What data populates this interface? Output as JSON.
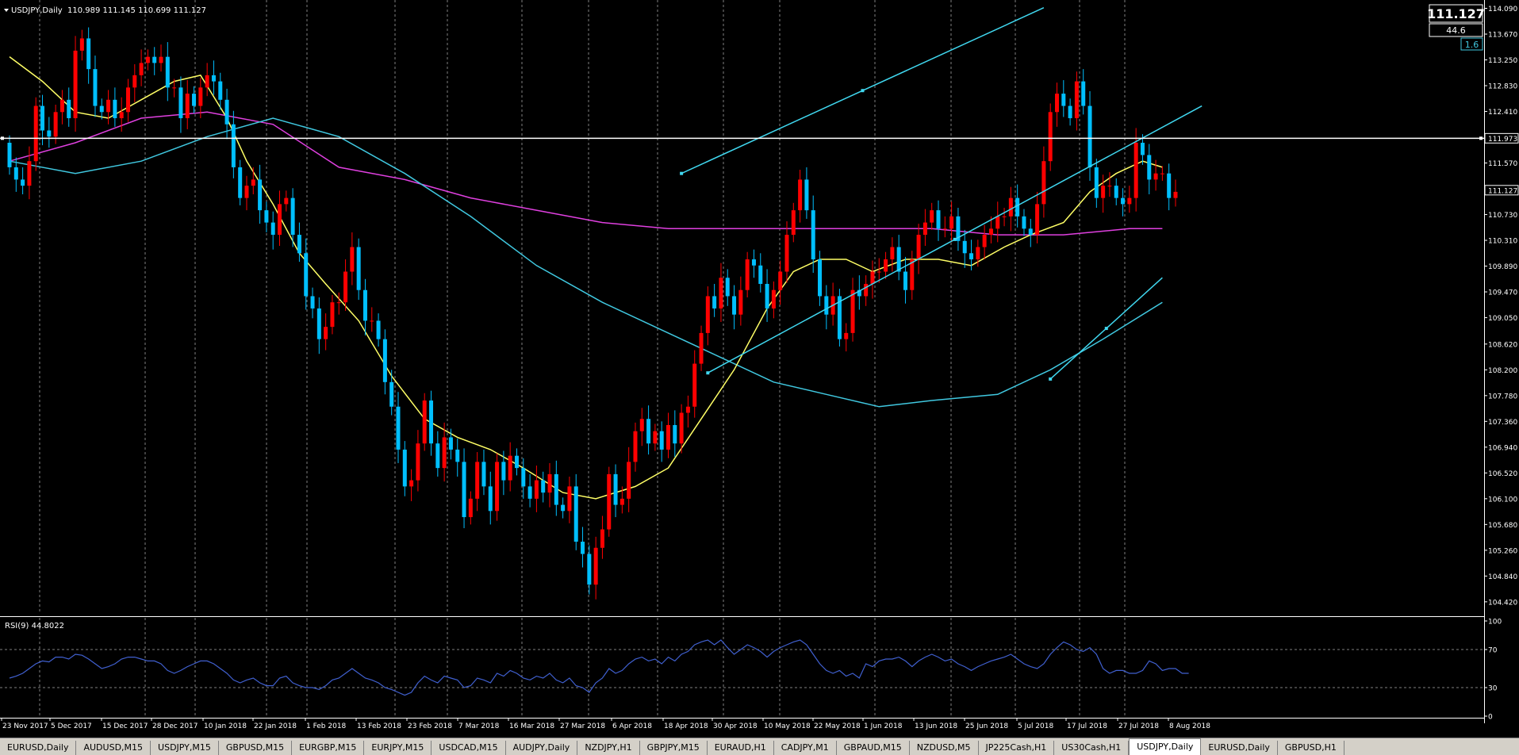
{
  "header": {
    "symbol_tf": "USDJPY,Daily",
    "ohlc": "110.989 111.145 110.699 111.127",
    "price_box": "111.127",
    "spread_box": "44.6",
    "small_box": "1.6"
  },
  "rsi": {
    "label": "RSI(9) 44.8022",
    "levels": [
      "100",
      "70",
      "30",
      "0"
    ]
  },
  "colors": {
    "bull": "#ff0000",
    "bear": "#00bfff",
    "ma_fast": "#ffff66",
    "ma_mid": "#40c8e0",
    "ma_slow": "#e040e0",
    "channel": "#40d8f0",
    "hline": "#ffffff",
    "rsi": "#4060d0",
    "grid": "#808080"
  },
  "chart_data": {
    "type": "candlestick",
    "symbol": "USDJPY",
    "timeframe": "Daily",
    "ylim": [
      104.25,
      114.2
    ],
    "price_ticks": [
      "114.090",
      "113.670",
      "113.250",
      "112.830",
      "112.410",
      "111.973",
      "111.570",
      "111.127",
      "110.730",
      "110.310",
      "109.890",
      "109.470",
      "109.050",
      "108.620",
      "108.200",
      "107.780",
      "107.360",
      "106.940",
      "106.520",
      "106.100",
      "105.680",
      "105.260",
      "104.840",
      "104.420"
    ],
    "date_ticks": [
      "23 Nov 2017",
      "5 Dec 2017",
      "15 Dec 2017",
      "28 Dec 2017",
      "10 Jan 2018",
      "22 Jan 2018",
      "1 Feb 2018",
      "13 Feb 2018",
      "23 Feb 2018",
      "7 Mar 2018",
      "16 Mar 2018",
      "27 Mar 2018",
      "6 Apr 2018",
      "18 Apr 2018",
      "30 Apr 2018",
      "10 May 2018",
      "22 May 2018",
      "1 Jun 2018",
      "13 Jun 2018",
      "25 Jun 2018",
      "5 Jul 2018",
      "17 Jul 2018",
      "27 Jul 2018",
      "8 Aug 2018"
    ],
    "hline_price": 111.973,
    "current_price": 111.127,
    "closes": [
      111.5,
      111.3,
      111.2,
      111.6,
      112.5,
      112.1,
      112.0,
      112.4,
      112.6,
      112.3,
      113.4,
      113.6,
      113.1,
      112.5,
      112.4,
      112.6,
      112.3,
      112.4,
      112.8,
      113.0,
      113.2,
      113.3,
      113.2,
      113.3,
      112.8,
      112.8,
      112.3,
      112.7,
      112.5,
      112.8,
      113.0,
      112.9,
      112.6,
      112.2,
      111.5,
      111.0,
      111.2,
      111.3,
      110.8,
      110.6,
      110.4,
      110.9,
      111.0,
      110.4,
      110.1,
      109.4,
      109.2,
      108.7,
      108.9,
      109.3,
      109.3,
      109.8,
      110.2,
      109.5,
      109.0,
      109.0,
      108.7,
      108.0,
      107.6,
      106.9,
      106.3,
      106.4,
      107.0,
      107.7,
      107.0,
      106.6,
      107.1,
      106.9,
      106.7,
      105.8,
      106.1,
      106.7,
      106.3,
      105.9,
      106.7,
      106.4,
      106.8,
      106.6,
      106.3,
      106.1,
      106.4,
      106.2,
      106.5,
      106.0,
      105.9,
      106.3,
      105.4,
      105.2,
      104.7,
      105.3,
      105.6,
      106.5,
      106.0,
      106.1,
      106.7,
      107.2,
      107.4,
      107.0,
      107.2,
      106.9,
      107.3,
      107.0,
      107.5,
      107.6,
      108.3,
      108.8,
      109.4,
      109.2,
      109.7,
      109.4,
      109.1,
      109.5,
      110.0,
      109.9,
      109.6,
      109.2,
      109.5,
      109.8,
      110.4,
      110.8,
      111.3,
      110.8,
      110.0,
      109.4,
      109.1,
      109.4,
      108.7,
      108.8,
      109.5,
      109.4,
      109.6,
      109.8,
      109.8,
      110.0,
      110.2,
      109.8,
      109.5,
      110.0,
      110.4,
      110.6,
      110.8,
      110.5,
      110.5,
      110.7,
      110.3,
      110.1,
      110.0,
      110.2,
      110.4,
      110.5,
      110.7,
      110.7,
      111.0,
      110.7,
      110.5,
      110.4,
      110.9,
      111.6,
      112.4,
      112.7,
      112.5,
      112.3,
      112.9,
      112.5,
      111.5,
      111.0,
      111.2,
      111.2,
      111.0,
      110.9,
      111.0,
      111.9,
      111.7,
      111.3,
      111.4,
      111.4,
      111.0,
      111.1
    ],
    "ma_fast": [
      [
        0,
        113.3
      ],
      [
        5,
        112.9
      ],
      [
        10,
        112.4
      ],
      [
        15,
        112.3
      ],
      [
        20,
        112.6
      ],
      [
        25,
        112.9
      ],
      [
        29,
        113.0
      ],
      [
        33,
        112.3
      ],
      [
        36,
        111.6
      ],
      [
        40,
        110.9
      ],
      [
        44,
        110.1
      ],
      [
        48,
        109.6
      ],
      [
        53,
        109.0
      ],
      [
        58,
        108.1
      ],
      [
        63,
        107.4
      ],
      [
        68,
        107.1
      ],
      [
        73,
        106.9
      ],
      [
        78,
        106.6
      ],
      [
        84,
        106.2
      ],
      [
        89,
        106.1
      ],
      [
        95,
        106.3
      ],
      [
        100,
        106.6
      ],
      [
        105,
        107.4
      ],
      [
        110,
        108.2
      ],
      [
        115,
        109.2
      ],
      [
        119,
        109.8
      ],
      [
        123,
        110.0
      ],
      [
        127,
        110.0
      ],
      [
        131,
        109.8
      ],
      [
        136,
        110.0
      ],
      [
        141,
        110.0
      ],
      [
        146,
        109.9
      ],
      [
        151,
        110.2
      ],
      [
        155,
        110.4
      ],
      [
        160,
        110.6
      ],
      [
        164,
        111.1
      ],
      [
        168,
        111.4
      ],
      [
        172,
        111.6
      ],
      [
        175,
        111.5
      ]
    ],
    "ma_mid": [
      [
        0,
        111.6
      ],
      [
        10,
        111.4
      ],
      [
        20,
        111.6
      ],
      [
        30,
        112.0
      ],
      [
        40,
        112.3
      ],
      [
        50,
        112.0
      ],
      [
        60,
        111.4
      ],
      [
        70,
        110.7
      ],
      [
        80,
        109.9
      ],
      [
        90,
        109.3
      ],
      [
        100,
        108.8
      ],
      [
        108,
        108.4
      ],
      [
        116,
        108.0
      ],
      [
        124,
        107.8
      ],
      [
        132,
        107.6
      ],
      [
        140,
        107.7
      ],
      [
        150,
        107.8
      ],
      [
        158,
        108.2
      ],
      [
        166,
        108.7
      ],
      [
        175,
        109.3
      ]
    ],
    "ma_slow": [
      [
        0,
        111.6
      ],
      [
        10,
        111.9
      ],
      [
        20,
        112.3
      ],
      [
        30,
        112.4
      ],
      [
        40,
        112.2
      ],
      [
        50,
        111.5
      ],
      [
        60,
        111.3
      ],
      [
        70,
        111.0
      ],
      [
        80,
        110.8
      ],
      [
        90,
        110.6
      ],
      [
        100,
        110.5
      ],
      [
        108,
        110.5
      ],
      [
        116,
        110.5
      ],
      [
        124,
        110.5
      ],
      [
        132,
        110.5
      ],
      [
        140,
        110.5
      ],
      [
        150,
        110.4
      ],
      [
        160,
        110.4
      ],
      [
        170,
        110.5
      ],
      [
        175,
        110.5
      ]
    ],
    "channel_lines": [
      {
        "from": [
          102,
          111.4
        ],
        "to": [
          157,
          114.1
        ]
      },
      {
        "from": [
          106,
          108.15
        ],
        "to": [
          181,
          112.5
        ]
      },
      {
        "from": [
          158,
          108.05
        ],
        "to": [
          175,
          109.7
        ]
      }
    ],
    "rsi_levels": [
      70,
      30
    ],
    "rsi_values": [
      40,
      42,
      45,
      50,
      55,
      58,
      57,
      62,
      62,
      60,
      65,
      64,
      60,
      55,
      50,
      52,
      55,
      60,
      62,
      62,
      60,
      58,
      58,
      55,
      48,
      45,
      48,
      52,
      55,
      58,
      58,
      55,
      50,
      45,
      38,
      35,
      38,
      40,
      35,
      32,
      32,
      40,
      42,
      35,
      32,
      30,
      30,
      28,
      32,
      38,
      40,
      45,
      50,
      45,
      40,
      38,
      35,
      30,
      28,
      25,
      22,
      25,
      35,
      42,
      38,
      35,
      42,
      40,
      38,
      30,
      32,
      40,
      38,
      35,
      45,
      42,
      48,
      45,
      40,
      38,
      42,
      40,
      45,
      38,
      35,
      40,
      32,
      30,
      25,
      35,
      40,
      50,
      45,
      48,
      55,
      60,
      62,
      58,
      60,
      55,
      62,
      58,
      65,
      68,
      75,
      78,
      80,
      75,
      80,
      72,
      65,
      70,
      75,
      72,
      68,
      62,
      68,
      72,
      75,
      78,
      80,
      75,
      65,
      55,
      48,
      45,
      48,
      42,
      45,
      40,
      55,
      52,
      58,
      60,
      60,
      62,
      58,
      52,
      58,
      62,
      65,
      62,
      58,
      60,
      55,
      52,
      48,
      52,
      55,
      58,
      60,
      62,
      65,
      60,
      55,
      52,
      50,
      55,
      65,
      72,
      78,
      75,
      70,
      68,
      72,
      65,
      50,
      45,
      48,
      48,
      45,
      45,
      48,
      58,
      55,
      48,
      50,
      50,
      45,
      45
    ]
  },
  "tabs": [
    "EURUSD,Daily",
    "AUDUSD,M15",
    "USDJPY,M15",
    "GBPUSD,M15",
    "EURGBP,M15",
    "EURJPY,M15",
    "USDCAD,M15",
    "AUDJPY,Daily",
    "NZDJPY,H1",
    "GBPJPY,M15",
    "EURAUD,H1",
    "CADJPY,M1",
    "GBPAUD,M15",
    "NZDUSD,M5",
    "JP225Cash,H1",
    "US30Cash,H1",
    "USDJPY,Daily",
    "EURUSD,Daily",
    "GBPUSD,H1"
  ],
  "active_tab": "USDJPY,Daily"
}
